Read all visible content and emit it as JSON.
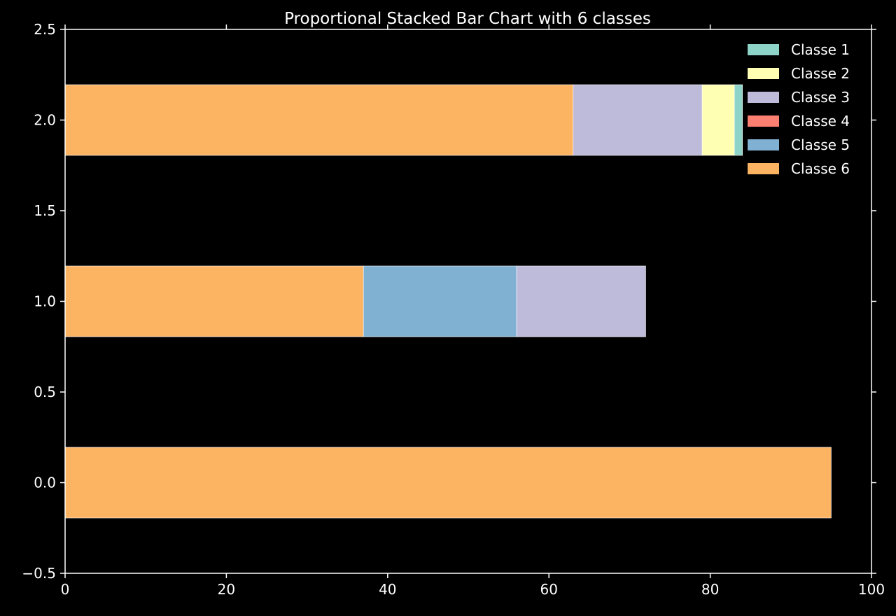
{
  "chart_data": {
    "type": "bar",
    "orientation": "horizontal",
    "stacked": true,
    "title": "Proportional Stacked Bar Chart with 6 classes",
    "xlabel": "",
    "ylabel": "",
    "xlim": [
      0,
      100
    ],
    "ylim": [
      -0.5,
      2.5
    ],
    "x_ticks": [
      0,
      20,
      40,
      60,
      80,
      100
    ],
    "x_tick_labels": [
      "0",
      "20",
      "40",
      "60",
      "80",
      "100"
    ],
    "y_ticks": [
      -0.5,
      0.0,
      0.5,
      1.0,
      1.5,
      2.0,
      2.5
    ],
    "y_tick_labels": [
      "−0.5",
      "0.0",
      "0.5",
      "1.0",
      "1.5",
      "2.0",
      "2.5"
    ],
    "bar_positions": [
      0,
      1,
      2
    ],
    "bar_height": 0.38,
    "grid": false,
    "legend_position": "top-right",
    "background": "#000000",
    "axis_color": "#ffffff",
    "stack_order": [
      "Classe 6",
      "Classe 5",
      "Classe 4",
      "Classe 3",
      "Classe 2",
      "Classe 1"
    ],
    "series": [
      {
        "name": "Classe 1",
        "color": "#8dd3c7",
        "values": [
          0,
          0,
          1
        ]
      },
      {
        "name": "Classe 2",
        "color": "#ffffb3",
        "values": [
          0,
          0,
          4
        ]
      },
      {
        "name": "Classe 3",
        "color": "#bebada",
        "values": [
          0,
          16,
          16
        ]
      },
      {
        "name": "Classe 4",
        "color": "#fb8072",
        "values": [
          0,
          0,
          0
        ]
      },
      {
        "name": "Classe 5",
        "color": "#80b1d3",
        "values": [
          0,
          19,
          0
        ]
      },
      {
        "name": "Classe 6",
        "color": "#fdb462",
        "values": [
          95,
          37,
          63
        ]
      }
    ]
  }
}
